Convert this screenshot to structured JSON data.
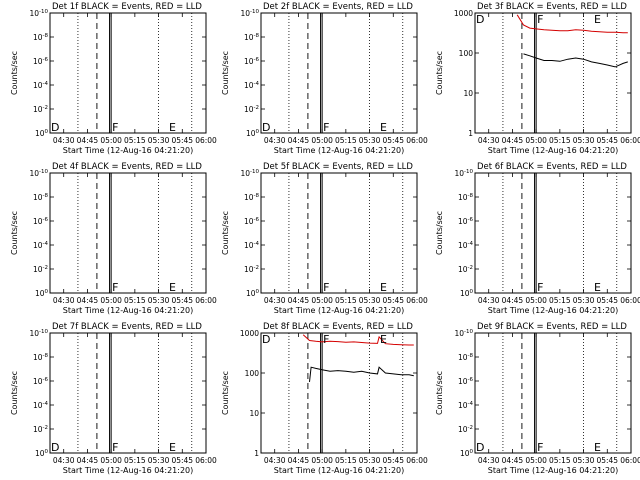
{
  "chart_data": [
    {
      "type": "line",
      "panel": "det-1f",
      "title": "Det 1f BLACK = Events, RED = LLD",
      "xlabel": "Start Time (12-Aug-16 04:21:20)",
      "ylabel": "Counts/sec",
      "x_ticks": [
        "04:30",
        "04:45",
        "05:00",
        "05:15",
        "05:30",
        "05:45",
        "06:00"
      ],
      "y_ticks": [
        "10^0",
        "10^-2",
        "10^-4",
        "10^-6",
        "10^-8",
        "10^-10"
      ],
      "y_scale": "log",
      "ylim": [
        1,
        1e-10
      ],
      "xlim": [
        "04:21:20",
        "06:00"
      ],
      "markers": [
        {
          "label": "D",
          "time": "04:21:20"
        },
        {
          "label": "F",
          "time": "05:00"
        },
        {
          "label": "E",
          "time": "05:36"
        }
      ],
      "vlines": {
        "dotted": [
          "04:39",
          "05:30",
          "05:51"
        ],
        "dashed": [
          "04:51"
        ],
        "solid_pair": [
          "04:59",
          "05:00"
        ]
      },
      "series": []
    },
    {
      "type": "line",
      "panel": "det-2f",
      "title": "Det 2f BLACK = Events, RED = LLD",
      "xlabel": "Start Time (12-Aug-16 04:21:20)",
      "ylabel": "Counts/sec",
      "x_ticks": [
        "04:30",
        "04:45",
        "05:00",
        "05:15",
        "05:30",
        "05:45",
        "06:00"
      ],
      "y_ticks": [
        "10^0",
        "10^-2",
        "10^-4",
        "10^-6",
        "10^-8",
        "10^-10"
      ],
      "y_scale": "log",
      "ylim": [
        1,
        1e-10
      ],
      "xlim": [
        "04:21:20",
        "06:00"
      ],
      "markers": [
        {
          "label": "D",
          "time": "04:21:20"
        },
        {
          "label": "F",
          "time": "05:00"
        },
        {
          "label": "E",
          "time": "05:36"
        }
      ],
      "vlines": {
        "dotted": [
          "04:39",
          "05:30",
          "05:51"
        ],
        "dashed": [
          "04:51"
        ],
        "solid_pair": [
          "04:59",
          "05:00"
        ]
      },
      "series": []
    },
    {
      "type": "line",
      "panel": "det-3f",
      "title": "Det 3f BLACK = Events, RED = LLD",
      "xlabel": "Start Time (12-Aug-16 04:21:20)",
      "ylabel": "Counts/sec",
      "x_ticks": [
        "04:30",
        "04:45",
        "05:00",
        "05:15",
        "05:30",
        "05:45",
        "06:00"
      ],
      "y_ticks": [
        "1000",
        "100",
        "10",
        "1"
      ],
      "y_scale": "log",
      "ylim": [
        1,
        1000
      ],
      "xlim": [
        "04:21:20",
        "06:00"
      ],
      "markers": [
        {
          "label": "D",
          "time": "04:21:20"
        },
        {
          "label": "F",
          "time": "05:00"
        },
        {
          "label": "E",
          "time": "05:36"
        }
      ],
      "vlines": {
        "dotted": [
          "04:39",
          "05:30",
          "05:51"
        ],
        "dashed": [
          "04:51"
        ],
        "solid_pair": [
          "04:59",
          "05:00"
        ]
      },
      "series": [
        {
          "name": "BLACK = Events",
          "color": "#000000",
          "x": [
            "04:52",
            "04:56",
            "05:00",
            "05:05",
            "05:10",
            "05:15",
            "05:20",
            "05:25",
            "05:30",
            "05:35",
            "05:40",
            "05:45",
            "05:50",
            "05:55",
            "05:58"
          ],
          "y": [
            95,
            85,
            75,
            65,
            65,
            62,
            70,
            75,
            70,
            60,
            55,
            50,
            45,
            55,
            60
          ]
        },
        {
          "name": "RED = LLD",
          "color": "#d40000",
          "x": [
            "04:48",
            "04:52",
            "04:56",
            "05:00",
            "05:05",
            "05:10",
            "05:15",
            "05:20",
            "05:25",
            "05:30",
            "05:35",
            "05:40",
            "05:45",
            "05:50",
            "05:55",
            "05:58"
          ],
          "y": [
            900,
            500,
            420,
            400,
            380,
            370,
            360,
            360,
            380,
            370,
            350,
            340,
            330,
            330,
            320,
            320
          ]
        }
      ]
    },
    {
      "type": "line",
      "panel": "det-4f",
      "title": "Det 4f BLACK = Events, RED = LLD",
      "xlabel": "Start Time (12-Aug-16 04:21:20)",
      "ylabel": "Counts/sec",
      "x_ticks": [
        "04:30",
        "04:45",
        "05:00",
        "05:15",
        "05:30",
        "05:45",
        "06:00"
      ],
      "y_ticks": [
        "10^0",
        "10^-2",
        "10^-4",
        "10^-6",
        "10^-8",
        "10^-10"
      ],
      "y_scale": "log",
      "ylim": [
        1,
        1e-10
      ],
      "xlim": [
        "04:21:20",
        "06:00"
      ],
      "markers": [
        {
          "label": "F",
          "time": "05:00"
        },
        {
          "label": "E",
          "time": "05:36"
        }
      ],
      "vlines": {
        "dotted": [
          "04:39",
          "05:30",
          "05:51"
        ],
        "dashed": [
          "04:51"
        ],
        "solid_pair": [
          "04:59",
          "05:00"
        ]
      },
      "series": []
    },
    {
      "type": "line",
      "panel": "det-5f",
      "title": "Det 5f BLACK = Events, RED = LLD",
      "xlabel": "Start Time (12-Aug-16 04:21:20)",
      "ylabel": "Counts/sec",
      "x_ticks": [
        "04:30",
        "04:45",
        "05:00",
        "05:15",
        "05:30",
        "05:45",
        "06:00"
      ],
      "y_ticks": [
        "10^0",
        "10^-2",
        "10^-4",
        "10^-6",
        "10^-8",
        "10^-10"
      ],
      "y_scale": "log",
      "ylim": [
        1,
        1e-10
      ],
      "xlim": [
        "04:21:20",
        "06:00"
      ],
      "markers": [
        {
          "label": "F",
          "time": "05:00"
        },
        {
          "label": "E",
          "time": "05:36"
        }
      ],
      "vlines": {
        "dotted": [
          "04:39",
          "05:30",
          "05:51"
        ],
        "dashed": [
          "04:51"
        ],
        "solid_pair": [
          "04:59",
          "05:00"
        ]
      },
      "series": []
    },
    {
      "type": "line",
      "panel": "det-6f",
      "title": "Det 6f BLACK = Events, RED = LLD",
      "xlabel": "Start Time (12-Aug-16 04:21:20)",
      "ylabel": "Counts/sec",
      "x_ticks": [
        "04:30",
        "04:45",
        "05:00",
        "05:15",
        "05:30",
        "05:45",
        "06:00"
      ],
      "y_ticks": [
        "10^0",
        "10^-2",
        "10^-4",
        "10^-6",
        "10^-8",
        "10^-10"
      ],
      "y_scale": "log",
      "ylim": [
        1,
        1e-10
      ],
      "xlim": [
        "04:21:20",
        "06:00"
      ],
      "markers": [
        {
          "label": "F",
          "time": "05:00"
        },
        {
          "label": "E",
          "time": "05:36"
        }
      ],
      "vlines": {
        "dotted": [
          "04:39",
          "05:30",
          "05:51"
        ],
        "dashed": [
          "04:51"
        ],
        "solid_pair": [
          "04:59",
          "05:00"
        ]
      },
      "series": []
    },
    {
      "type": "line",
      "panel": "det-7f",
      "title": "Det 7f BLACK = Events, RED = LLD",
      "xlabel": "Start Time (12-Aug-16 04:21:20)",
      "ylabel": "Counts/sec",
      "x_ticks": [
        "04:30",
        "04:45",
        "05:00",
        "05:15",
        "05:30",
        "05:45",
        "06:00"
      ],
      "y_ticks": [
        "10^0",
        "10^-2",
        "10^-4",
        "10^-6",
        "10^-8",
        "10^-10"
      ],
      "y_scale": "log",
      "ylim": [
        1,
        1e-10
      ],
      "xlim": [
        "04:21:20",
        "06:00"
      ],
      "markers": [
        {
          "label": "D",
          "time": "04:21:20"
        },
        {
          "label": "F",
          "time": "05:00"
        },
        {
          "label": "E",
          "time": "05:36"
        }
      ],
      "vlines": {
        "dotted": [
          "04:39",
          "05:30",
          "05:51"
        ],
        "dashed": [
          "04:51"
        ],
        "solid_pair": [
          "04:59",
          "05:00"
        ]
      },
      "series": []
    },
    {
      "type": "line",
      "panel": "det-8f",
      "title": "Det 8f BLACK = Events, RED = LLD",
      "xlabel": "Start Time (12-Aug-16 04:21:20)",
      "ylabel": "Counts/sec",
      "x_ticks": [
        "04:30",
        "04:45",
        "05:00",
        "05:15",
        "05:30",
        "05:45",
        "06:00"
      ],
      "y_ticks": [
        "1000",
        "100",
        "10",
        "1"
      ],
      "y_scale": "log",
      "ylim": [
        1,
        1000
      ],
      "xlim": [
        "04:21:20",
        "06:00"
      ],
      "markers": [
        {
          "label": "D",
          "time": "04:21:20"
        },
        {
          "label": "F",
          "time": "05:00"
        },
        {
          "label": "E",
          "time": "05:36"
        }
      ],
      "vlines": {
        "dotted": [
          "04:39",
          "05:30",
          "05:51"
        ],
        "dashed": [
          "04:51"
        ],
        "solid_pair": [
          "04:59",
          "05:00"
        ]
      },
      "series": [
        {
          "name": "BLACK = Events",
          "color": "#000000",
          "x": [
            "04:52",
            "04:53",
            "04:56",
            "05:00",
            "05:05",
            "05:10",
            "05:15",
            "05:20",
            "05:25",
            "05:30",
            "05:35",
            "05:36",
            "05:40",
            "05:45",
            "05:50",
            "05:55",
            "05:58"
          ],
          "y": [
            60,
            140,
            130,
            120,
            110,
            115,
            110,
            105,
            110,
            100,
            95,
            140,
            100,
            95,
            90,
            90,
            85
          ]
        },
        {
          "name": "RED = LLD",
          "color": "#d40000",
          "x": [
            "04:48",
            "04:52",
            "04:56",
            "05:00",
            "05:05",
            "05:10",
            "05:15",
            "05:20",
            "05:25",
            "05:30",
            "05:35",
            "05:36",
            "05:40",
            "05:45",
            "05:50",
            "05:55",
            "05:58"
          ],
          "y": [
            900,
            650,
            620,
            600,
            620,
            610,
            590,
            600,
            580,
            560,
            550,
            800,
            540,
            520,
            510,
            500,
            500
          ]
        }
      ]
    },
    {
      "type": "line",
      "panel": "det-9f",
      "title": "Det 9f BLACK = Events, RED = LLD",
      "xlabel": "Start Time (12-Aug-16 04:21:20)",
      "ylabel": "Counts/sec",
      "x_ticks": [
        "04:30",
        "04:45",
        "05:00",
        "05:15",
        "05:30",
        "05:45",
        "06:00"
      ],
      "y_ticks": [
        "10^0",
        "10^-2",
        "10^-4",
        "10^-6",
        "10^-8",
        "10^-10"
      ],
      "y_scale": "log",
      "ylim": [
        1,
        1e-10
      ],
      "xlim": [
        "04:21:20",
        "06:00"
      ],
      "markers": [
        {
          "label": "D",
          "time": "04:21:20"
        },
        {
          "label": "F",
          "time": "05:00"
        },
        {
          "label": "E",
          "time": "05:36"
        }
      ],
      "vlines": {
        "dotted": [
          "04:39",
          "05:30",
          "05:51"
        ],
        "dashed": [
          "04:51"
        ],
        "solid_pair": [
          "04:59",
          "05:00"
        ]
      },
      "series": []
    }
  ]
}
